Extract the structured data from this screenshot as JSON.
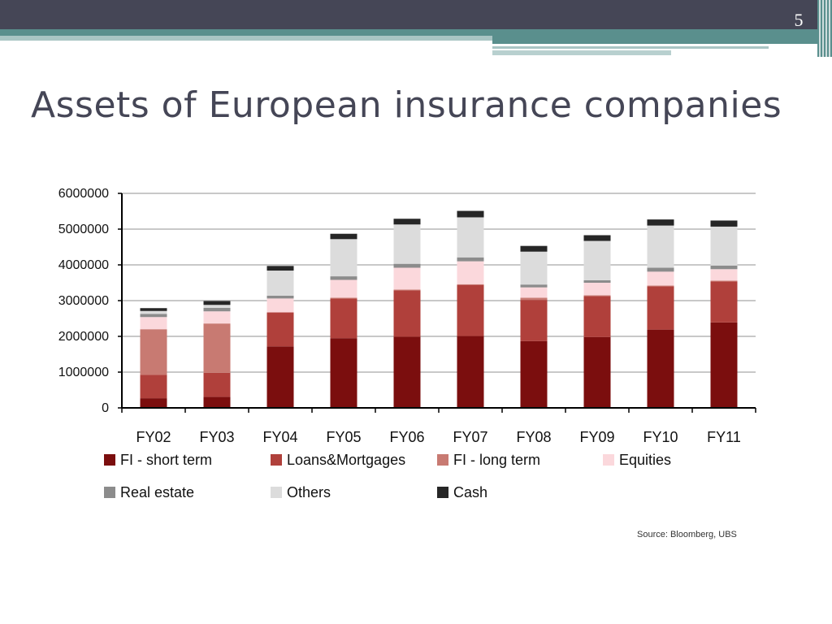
{
  "slide": {
    "number": "5",
    "title": "Assets of European insurance companies",
    "source": "Source: Bloomberg, UBS"
  },
  "chart_data": {
    "type": "bar",
    "stacked": true,
    "title": "",
    "xlabel": "",
    "ylabel": "",
    "ylim": [
      0,
      6000000
    ],
    "yticks": [
      0,
      1000000,
      2000000,
      3000000,
      4000000,
      5000000,
      6000000
    ],
    "ytick_labels": [
      "0",
      "1000000",
      "2000000",
      "3000000",
      "4000000",
      "5000000",
      "6000000"
    ],
    "grid": true,
    "legend_position": "bottom",
    "categories": [
      "FY02",
      "FY03",
      "FY04",
      "FY05",
      "FY06",
      "FY07",
      "FY08",
      "FY09",
      "FY10",
      "FY11"
    ],
    "series": [
      {
        "name": "FI - short term",
        "color": "#7b0e0e",
        "values": [
          270000,
          310000,
          1720000,
          1950000,
          1990000,
          2010000,
          1870000,
          1980000,
          2190000,
          2390000
        ]
      },
      {
        "name": "Loans&Mortgages",
        "color": "#b0403b",
        "values": [
          650000,
          670000,
          950000,
          1110000,
          1300000,
          1430000,
          1150000,
          1150000,
          1210000,
          1150000
        ]
      },
      {
        "name": "FI - long term",
        "color": "#c87a72",
        "values": [
          1280000,
          1380000,
          0,
          20000,
          20000,
          20000,
          60000,
          20000,
          20000,
          20000
        ]
      },
      {
        "name": "Equities",
        "color": "#fbd8dc",
        "values": [
          340000,
          340000,
          390000,
          500000,
          610000,
          640000,
          290000,
          350000,
          390000,
          320000
        ]
      },
      {
        "name": "Real estate",
        "color": "#8c8c8c",
        "values": [
          90000,
          100000,
          80000,
          100000,
          110000,
          110000,
          80000,
          70000,
          110000,
          100000
        ]
      },
      {
        "name": "Others",
        "color": "#dcdcdc",
        "values": [
          80000,
          80000,
          700000,
          1040000,
          1100000,
          1120000,
          920000,
          1100000,
          1180000,
          1090000
        ]
      },
      {
        "name": "Cash",
        "color": "#262626",
        "values": [
          80000,
          110000,
          130000,
          150000,
          160000,
          180000,
          160000,
          160000,
          170000,
          170000
        ]
      }
    ]
  }
}
